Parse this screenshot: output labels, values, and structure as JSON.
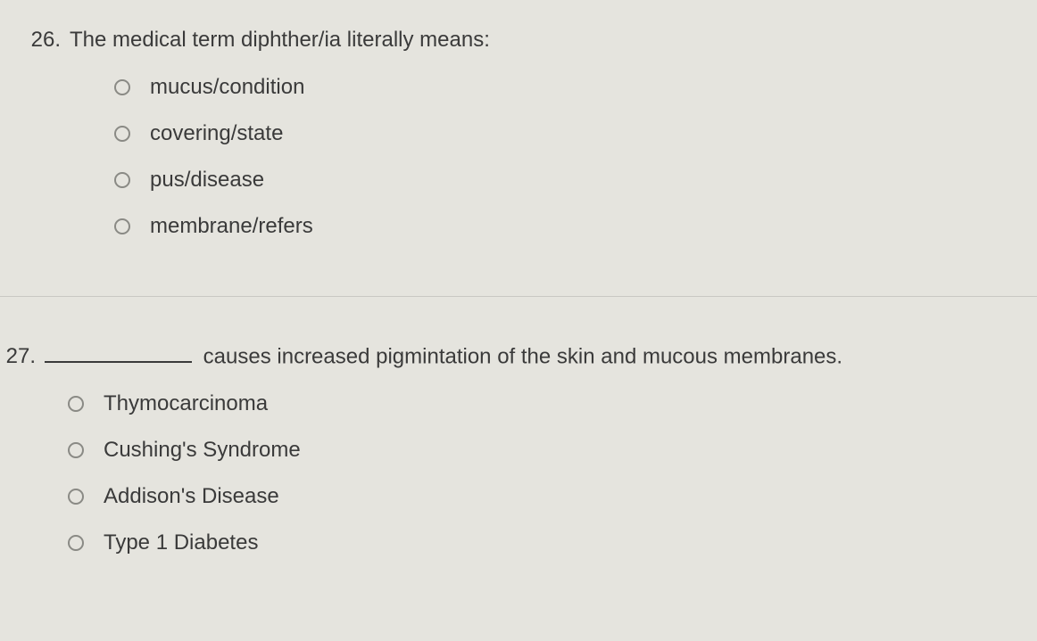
{
  "colors": {
    "background": "#e5e4de",
    "text": "#3a3a3a",
    "radio_border": "#8a8a85",
    "divider": "rgba(0,0,0,0.12)"
  },
  "typography": {
    "font_family": "Arial, Helvetica, sans-serif",
    "question_fontsize": 24,
    "option_fontsize": 24
  },
  "questions": {
    "q26": {
      "number": "26.",
      "text": "The medical term diphther/ia literally means:",
      "options": [
        "mucus/condition",
        "covering/state",
        "pus/disease",
        "membrane/refers"
      ]
    },
    "q27": {
      "number": "27.",
      "text_after_blank": "causes increased pigmintation of the skin and mucous membranes.",
      "options": [
        "Thymocarcinoma",
        "Cushing's Syndrome",
        "Addison's Disease",
        "Type 1 Diabetes"
      ]
    }
  }
}
